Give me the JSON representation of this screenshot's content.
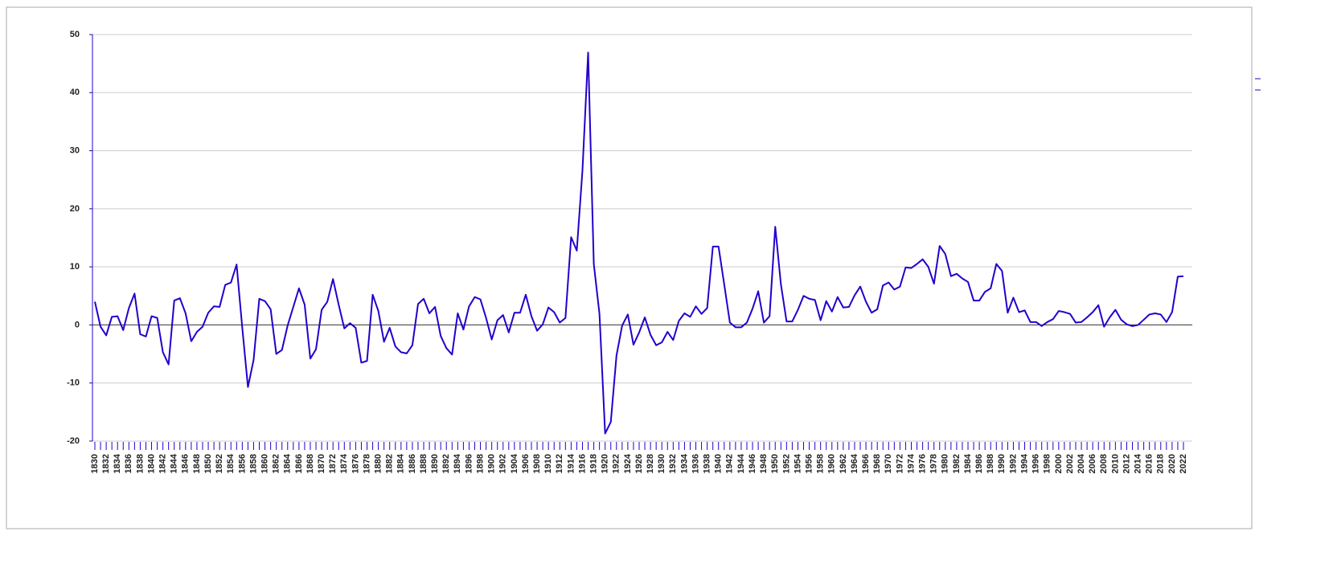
{
  "chart_data": {
    "type": "line",
    "categories": [
      "1830",
      null,
      "1832",
      null,
      "1834",
      null,
      "1836",
      null,
      "1838",
      null,
      "1840",
      null,
      "1842",
      null,
      "1844",
      null,
      "1846",
      null,
      "1848",
      null,
      "1850",
      null,
      "1852",
      null,
      "1854",
      null,
      "1856",
      null,
      "1858",
      null,
      "1860",
      null,
      "1862",
      null,
      "1864",
      null,
      "1866",
      null,
      "1868",
      null,
      "1870",
      null,
      "1872",
      null,
      "1874",
      null,
      "1876",
      null,
      "1878",
      null,
      "1880",
      null,
      "1882",
      null,
      "1884",
      null,
      "1886",
      null,
      "1888",
      null,
      "1890",
      null,
      "1892",
      null,
      "1894",
      null,
      "1896",
      null,
      "1898",
      null,
      "1900",
      null,
      "1902",
      null,
      "1904",
      null,
      "1906",
      null,
      "1908",
      null,
      "1910",
      null,
      "1912",
      null,
      "1914",
      null,
      "1916",
      null,
      "1918",
      null,
      "1920",
      null,
      "1922",
      null,
      "1924",
      null,
      "1926",
      null,
      "1928",
      null,
      "1930",
      null,
      "1932",
      null,
      "1934",
      null,
      "1936",
      null,
      "1938",
      null,
      "1940",
      null,
      "1942",
      null,
      "1944",
      null,
      "1946",
      null,
      "1948",
      null,
      "1950",
      null,
      "1952",
      null,
      "1954",
      null,
      "1956",
      null,
      "1958",
      null,
      "1960",
      null,
      "1962",
      null,
      "1964",
      null,
      "1966",
      null,
      "1968",
      null,
      "1970",
      null,
      "1972",
      null,
      "1974",
      null,
      "1976",
      null,
      "1978",
      null,
      "1980",
      null,
      "1982",
      null,
      "1984",
      null,
      "1986",
      null,
      "1988",
      null,
      "1990",
      null,
      "1992",
      null,
      "1994",
      null,
      "1996",
      null,
      "1998",
      null,
      "2000",
      null,
      "2002",
      null,
      "2004",
      null,
      "2006",
      null,
      "2008",
      null,
      "2010",
      null,
      "2012",
      null,
      "2014",
      null,
      "2016",
      null,
      "2018",
      null,
      "2020",
      null,
      "2022"
    ],
    "series": [
      {
        "color": "#2200cc",
        "values": [
          4,
          -0.3,
          -1.8,
          1.4,
          1.5,
          -0.9,
          2.9,
          5.4,
          -1.6,
          -2,
          1.5,
          1.2,
          -4.7,
          -6.8,
          4.2,
          4.6,
          2,
          -2.8,
          -1.2,
          -0.3,
          2.1,
          3.2,
          3.1,
          6.9,
          7.3,
          10.4,
          -0.5,
          -10.7,
          -6,
          4.5,
          4.1,
          2.7,
          -5,
          -4.3,
          -0.1,
          3.1,
          6.3,
          3.5,
          -5.8,
          -4.2,
          2.6,
          4,
          7.9,
          3.5,
          -0.6,
          0.3,
          -0.5,
          -6.5,
          -6.2,
          5.2,
          2.4,
          -2.9,
          -0.5,
          -3.7,
          -4.7,
          -4.9,
          -3.5,
          3.6,
          4.5,
          2,
          3.1,
          -1.9,
          -4,
          -5.1,
          2,
          -0.8,
          3.2,
          4.8,
          4.4,
          1.2,
          -2.5,
          0.8,
          1.7,
          -1.3,
          2.1,
          2.1,
          5.2,
          1.5,
          -1,
          0.1,
          3,
          2.2,
          0.4,
          1.2,
          15.1,
          12.8,
          26.6,
          46.9,
          10.5,
          1.9,
          -18.7,
          -16.7,
          -5.3,
          -0.1,
          1.8,
          -3.4,
          -1.3,
          1.3,
          -1.7,
          -3.5,
          -3,
          -1.2,
          -2.6,
          0.7,
          2,
          1.4,
          3.2,
          1.9,
          2.9,
          13.5,
          13.5,
          7,
          0.4,
          -0.4,
          -0.4,
          0.4,
          2.8,
          5.8,
          0.4,
          1.5,
          16.9,
          7,
          0.6,
          0.6,
          2.6,
          5,
          4.5,
          4.3,
          0.8,
          4.1,
          2.3,
          4.8,
          3,
          3.1,
          5.1,
          6.6,
          4,
          2.1,
          2.7,
          6.8,
          7.3,
          6.1,
          6.6,
          9.9,
          9.8,
          10.5,
          11.3,
          10,
          7.1,
          13.6,
          12.2,
          8.4,
          8.8,
          8,
          7.4,
          4.2,
          4.2,
          5.7,
          6.3,
          10.5,
          9.3,
          2.1,
          4.7,
          2.2,
          2.5,
          0.5,
          0.5,
          -0.2,
          0.5,
          1,
          2.4,
          2.2,
          1.9,
          0.4,
          0.5,
          1.3,
          2.2,
          3.4,
          -0.3,
          1.3,
          2.6,
          0.9,
          0.1,
          -0.2,
          0,
          0.9,
          1.8,
          2,
          1.8,
          0.5,
          2.2,
          8.3,
          8.4
        ]
      }
    ],
    "ylim": [
      -20,
      50
    ],
    "yticks": [
      -20,
      -10,
      0,
      10,
      20,
      30,
      40,
      50
    ],
    "grid": true
  }
}
